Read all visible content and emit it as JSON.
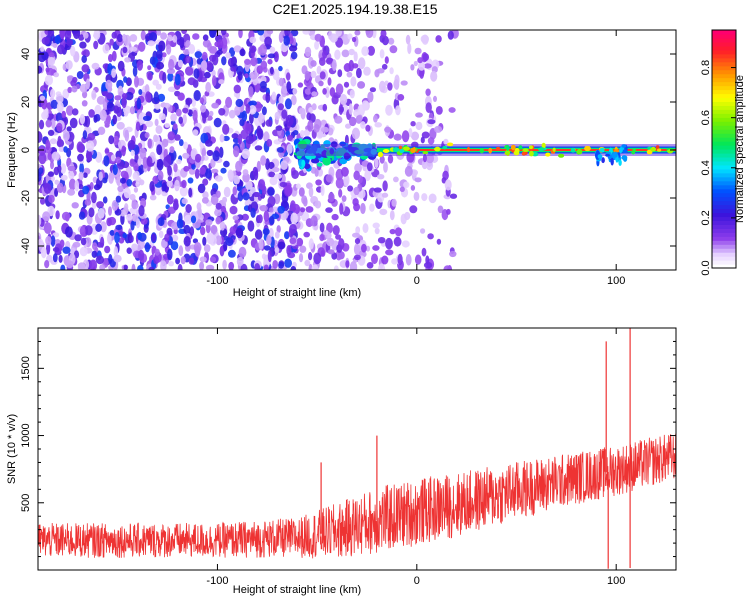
{
  "title": "C2E1.2025.194.19.38.E15",
  "chart_data": [
    {
      "type": "heatmap",
      "xlabel": "Height of straight line (km)",
      "ylabel": "Frequency (Hz)",
      "xlim": [
        -190,
        130
      ],
      "ylim": [
        -50,
        50
      ],
      "x_ticks": [
        -100,
        0,
        100
      ],
      "y_ticks": [
        -40,
        -20,
        0,
        20,
        40
      ],
      "colorbar": {
        "label": "Normalized spectral amplitude",
        "range": [
          0.0,
          0.95
        ],
        "ticks": [
          0.0,
          0.2,
          0.4,
          0.6,
          0.8
        ],
        "colormap": "rainbow (white → purple → blue → cyan → green → yellow → orange → red)"
      },
      "features": [
        {
          "name": "noise",
          "x_range": [
            -190,
            -60
          ],
          "amplitude_range": [
            0.05,
            0.3
          ]
        },
        {
          "name": "transition",
          "x_range": [
            -60,
            -20
          ],
          "freq_spread_hz": [
            -10,
            5
          ]
        },
        {
          "name": "signal line",
          "x_range": [
            -20,
            130
          ],
          "frequency_hz": 0,
          "amplitude_range": [
            0.3,
            0.95
          ]
        }
      ]
    },
    {
      "type": "line",
      "xlabel": "Height of straight line (km)",
      "ylabel": "SNR (10 * v/v)",
      "xlim": [
        -190,
        130
      ],
      "ylim": [
        0,
        1800
      ],
      "x_ticks": [
        -100,
        0,
        100
      ],
      "y_ticks": [
        500,
        1000,
        1500
      ],
      "color": "#ee3333",
      "trend": {
        "x": [
          -190,
          -100,
          -60,
          -40,
          -20,
          0,
          25,
          50,
          75,
          100,
          130
        ],
        "mean": [
          220,
          220,
          240,
          290,
          370,
          430,
          500,
          590,
          670,
          740,
          850
        ],
        "amplitude": [
          130,
          130,
          150,
          210,
          250,
          250,
          240,
          220,
          200,
          190,
          180
        ]
      },
      "spikes": [
        {
          "x": -48,
          "y": 800
        },
        {
          "x": -20,
          "y": 1000
        },
        {
          "x": 95,
          "y": 1700
        },
        {
          "x": 107,
          "y": 1800
        },
        {
          "x": 96,
          "y": 10
        },
        {
          "x": 107,
          "y": 15
        }
      ]
    }
  ]
}
